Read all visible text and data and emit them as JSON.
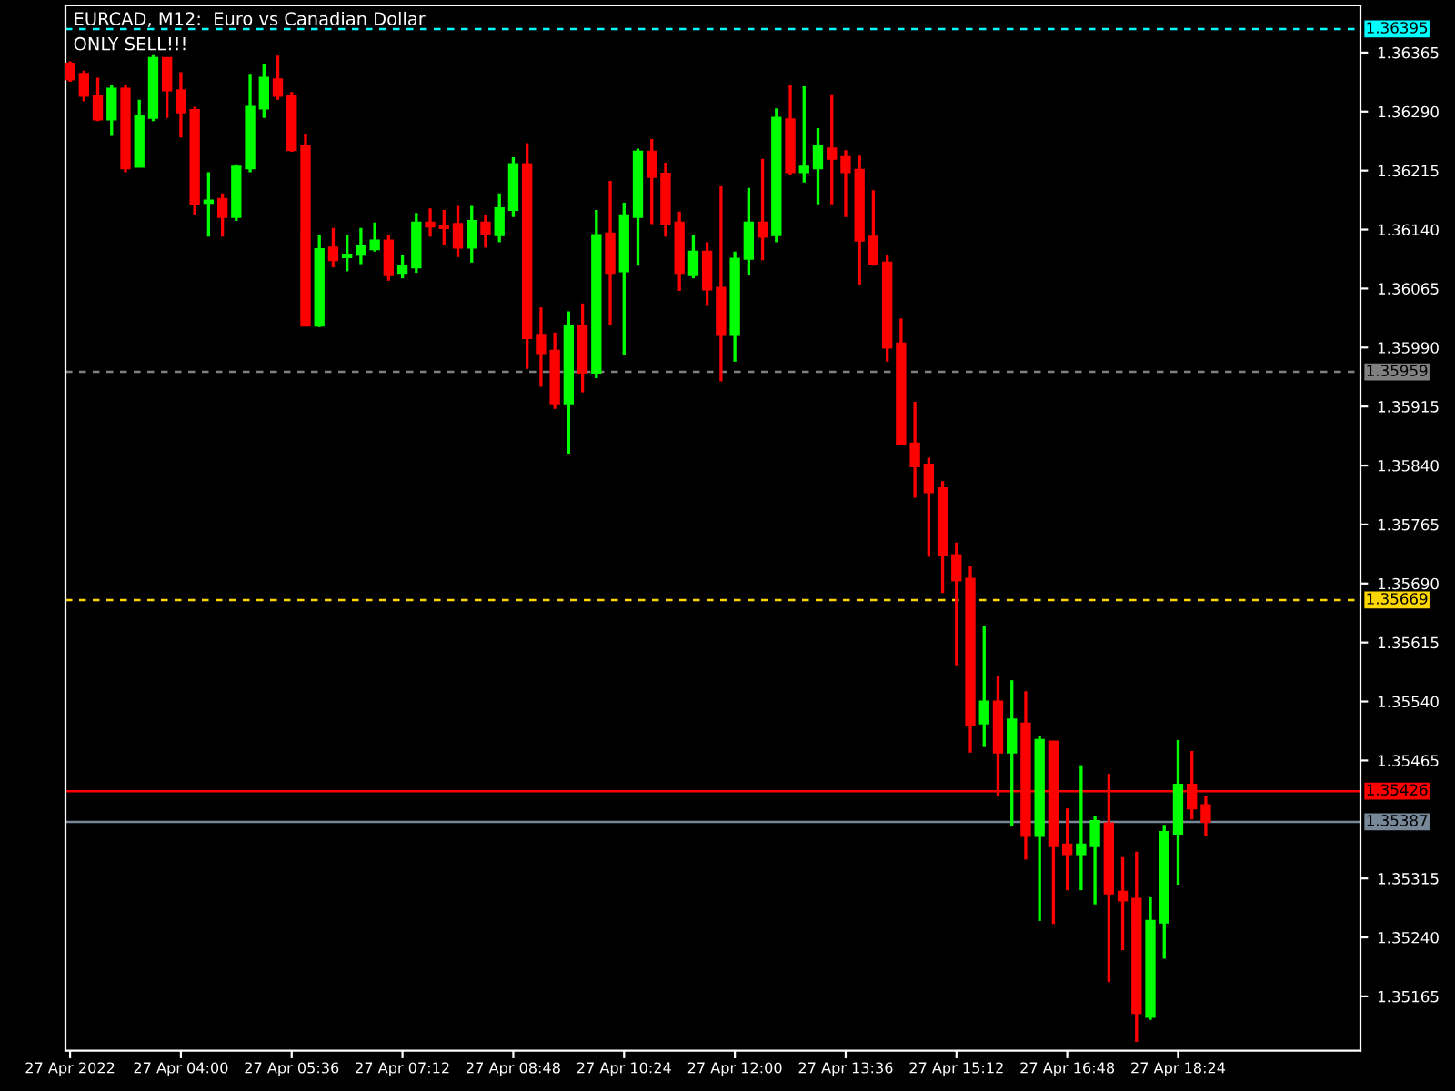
{
  "chart_data": {
    "type": "candlestick",
    "title": "EURCAD, M12:  Euro vs Canadian Dollar",
    "annotations": [
      "ONLY SELL!!!"
    ],
    "x": [
      "2022-04-27T02:24",
      "2022-04-27T02:36",
      "2022-04-27T02:48",
      "2022-04-27T03:00",
      "2022-04-27T03:12",
      "2022-04-27T03:24",
      "2022-04-27T03:36",
      "2022-04-27T03:48",
      "2022-04-27T04:00",
      "2022-04-27T04:12",
      "2022-04-27T04:24",
      "2022-04-27T04:36",
      "2022-04-27T04:48",
      "2022-04-27T05:00",
      "2022-04-27T05:12",
      "2022-04-27T05:24",
      "2022-04-27T05:36",
      "2022-04-27T05:48",
      "2022-04-27T06:00",
      "2022-04-27T06:12",
      "2022-04-27T06:24",
      "2022-04-27T06:36",
      "2022-04-27T06:48",
      "2022-04-27T07:00",
      "2022-04-27T07:12",
      "2022-04-27T07:24",
      "2022-04-27T07:36",
      "2022-04-27T07:48",
      "2022-04-27T08:00",
      "2022-04-27T08:12",
      "2022-04-27T08:24",
      "2022-04-27T08:36",
      "2022-04-27T08:48",
      "2022-04-27T09:00",
      "2022-04-27T09:12",
      "2022-04-27T09:24",
      "2022-04-27T09:36",
      "2022-04-27T09:48",
      "2022-04-27T10:00",
      "2022-04-27T10:12",
      "2022-04-27T10:24",
      "2022-04-27T10:36",
      "2022-04-27T10:48",
      "2022-04-27T11:00",
      "2022-04-27T11:12",
      "2022-04-27T11:24",
      "2022-04-27T11:36",
      "2022-04-27T11:48",
      "2022-04-27T12:00",
      "2022-04-27T12:12",
      "2022-04-27T12:24",
      "2022-04-27T12:36",
      "2022-04-27T12:48",
      "2022-04-27T13:00",
      "2022-04-27T13:12",
      "2022-04-27T13:24",
      "2022-04-27T13:36",
      "2022-04-27T13:48",
      "2022-04-27T14:00",
      "2022-04-27T14:12",
      "2022-04-27T14:24",
      "2022-04-27T14:36",
      "2022-04-27T14:48",
      "2022-04-27T15:00",
      "2022-04-27T15:12",
      "2022-04-27T15:24",
      "2022-04-27T15:36",
      "2022-04-27T15:48",
      "2022-04-27T16:00",
      "2022-04-27T16:12",
      "2022-04-27T16:24",
      "2022-04-27T16:36",
      "2022-04-27T16:48",
      "2022-04-27T17:00",
      "2022-04-27T17:12",
      "2022-04-27T17:24",
      "2022-04-27T17:36",
      "2022-04-27T17:48",
      "2022-04-27T18:00",
      "2022-04-27T18:12",
      "2022-04-27T18:24",
      "2022-04-27T18:36",
      "2022-04-27T18:48"
    ],
    "ohlc": [
      [
        1.36351,
        1.36354,
        1.36328,
        1.36331
      ],
      [
        1.36338,
        1.36342,
        1.36303,
        1.3631
      ],
      [
        1.3631,
        1.36333,
        1.36278,
        1.3628
      ],
      [
        1.3628,
        1.36324,
        1.36259,
        1.36319
      ],
      [
        1.36319,
        1.36324,
        1.36213,
        1.36218
      ],
      [
        1.3622,
        1.36305,
        1.3622,
        1.36285
      ],
      [
        1.36282,
        1.36363,
        1.36278,
        1.36358
      ],
      [
        1.36358,
        1.36358,
        1.36282,
        1.36317
      ],
      [
        1.36317,
        1.3634,
        1.36257,
        1.36289
      ],
      [
        1.36292,
        1.36296,
        1.36158,
        1.36172
      ],
      [
        1.36174,
        1.36213,
        1.36131,
        1.36177
      ],
      [
        1.36179,
        1.36186,
        1.36131,
        1.36156
      ],
      [
        1.36156,
        1.36223,
        1.36151,
        1.3622
      ],
      [
        1.36218,
        1.36338,
        1.36213,
        1.36296
      ],
      [
        1.36294,
        1.36351,
        1.36282,
        1.36333
      ],
      [
        1.36331,
        1.36361,
        1.36305,
        1.3631
      ],
      [
        1.3631,
        1.36315,
        1.36239,
        1.36241
      ],
      [
        1.36246,
        1.36262,
        1.36018,
        1.36018
      ],
      [
        1.36018,
        1.36133,
        1.36016,
        1.36115
      ],
      [
        1.36117,
        1.36142,
        1.36092,
        1.36101
      ],
      [
        1.36105,
        1.36133,
        1.36087,
        1.36108
      ],
      [
        1.36108,
        1.36142,
        1.36096,
        1.36119
      ],
      [
        1.36115,
        1.36149,
        1.36112,
        1.36126
      ],
      [
        1.36126,
        1.36133,
        1.36075,
        1.36082
      ],
      [
        1.36085,
        1.36108,
        1.36078,
        1.36094
      ],
      [
        1.36092,
        1.36161,
        1.36085,
        1.36149
      ],
      [
        1.36149,
        1.36167,
        1.36131,
        1.36144
      ],
      [
        1.36144,
        1.36165,
        1.36121,
        1.36142
      ],
      [
        1.36147,
        1.3617,
        1.36105,
        1.36117
      ],
      [
        1.36117,
        1.3617,
        1.36098,
        1.36151
      ],
      [
        1.36149,
        1.36158,
        1.36117,
        1.36135
      ],
      [
        1.36133,
        1.36186,
        1.36124,
        1.36167
      ],
      [
        1.36165,
        1.36232,
        1.36156,
        1.36223
      ],
      [
        1.36223,
        1.3625,
        1.35963,
        1.36002
      ],
      [
        1.36006,
        1.36041,
        1.3594,
        1.35983
      ],
      [
        1.35986,
        1.36009,
        1.35912,
        1.35919
      ],
      [
        1.35919,
        1.36036,
        1.35855,
        1.36018
      ],
      [
        1.36018,
        1.36046,
        1.35933,
        1.35958
      ],
      [
        1.35958,
        1.36165,
        1.35951,
        1.36133
      ],
      [
        1.36135,
        1.36202,
        1.36018,
        1.36085
      ],
      [
        1.36087,
        1.36174,
        1.35981,
        1.36158
      ],
      [
        1.36156,
        1.36243,
        1.36094,
        1.36239
      ],
      [
        1.36239,
        1.36255,
        1.36147,
        1.36207
      ],
      [
        1.36211,
        1.36225,
        1.36131,
        1.36147
      ],
      [
        1.36149,
        1.36163,
        1.36062,
        1.36085
      ],
      [
        1.36082,
        1.36133,
        1.36078,
        1.36112
      ],
      [
        1.36112,
        1.36124,
        1.36043,
        1.36064
      ],
      [
        1.36066,
        1.36195,
        1.35947,
        1.36006
      ],
      [
        1.36006,
        1.36112,
        1.35972,
        1.36103
      ],
      [
        1.36103,
        1.36193,
        1.36082,
        1.36149
      ],
      [
        1.36149,
        1.3623,
        1.36101,
        1.36131
      ],
      [
        1.36133,
        1.36294,
        1.36124,
        1.36282
      ],
      [
        1.3628,
        1.36324,
        1.36209,
        1.36213
      ],
      [
        1.36213,
        1.36322,
        1.362,
        1.3622
      ],
      [
        1.36218,
        1.36269,
        1.36172,
        1.36246
      ],
      [
        1.36243,
        1.36312,
        1.36172,
        1.3623
      ],
      [
        1.36232,
        1.36241,
        1.36156,
        1.36213
      ],
      [
        1.36216,
        1.36234,
        1.36069,
        1.36126
      ],
      [
        1.36131,
        1.3619,
        1.36094,
        1.36096
      ],
      [
        1.36098,
        1.36108,
        1.35972,
        1.3599
      ],
      [
        1.35995,
        1.36027,
        1.35866,
        1.35868
      ],
      [
        1.35868,
        1.35921,
        1.35799,
        1.35839
      ],
      [
        1.35841,
        1.3585,
        1.35724,
        1.35806
      ],
      [
        1.35811,
        1.3582,
        1.35678,
        1.35726
      ],
      [
        1.35726,
        1.35742,
        1.35586,
        1.35694
      ],
      [
        1.35696,
        1.35712,
        1.35475,
        1.3551
      ],
      [
        1.35512,
        1.35636,
        1.35482,
        1.3554
      ],
      [
        1.3554,
        1.35572,
        1.3542,
        1.35475
      ],
      [
        1.35475,
        1.35567,
        1.35381,
        1.35517
      ],
      [
        1.35512,
        1.35553,
        1.35339,
        1.35369
      ],
      [
        1.35369,
        1.35496,
        1.35261,
        1.35491
      ],
      [
        1.35489,
        1.35489,
        1.35257,
        1.35356
      ],
      [
        1.35358,
        1.35404,
        1.353,
        1.35346
      ],
      [
        1.35346,
        1.35459,
        1.353,
        1.35358
      ],
      [
        1.35356,
        1.35395,
        1.35282,
        1.35388
      ],
      [
        1.35385,
        1.35448,
        1.35183,
        1.35296
      ],
      [
        1.35298,
        1.35342,
        1.35224,
        1.35287
      ],
      [
        1.35289,
        1.35349,
        1.35107,
        1.35144
      ],
      [
        1.35139,
        1.35291,
        1.35135,
        1.35261
      ],
      [
        1.35259,
        1.35383,
        1.35213,
        1.35374
      ],
      [
        1.35372,
        1.35491,
        1.35307,
        1.35434
      ],
      [
        1.35434,
        1.35477,
        1.3539,
        1.35404
      ],
      [
        1.35408,
        1.3542,
        1.35369,
        1.35387
      ]
    ],
    "colors": [
      "#ff0000",
      "#ff0000",
      "#ff0000",
      "#00ff00",
      "#ff0000",
      "#00ff00",
      "#00ff00",
      "#ff0000",
      "#ff0000",
      "#ff0000",
      "#00ff00",
      "#ff0000",
      "#00ff00",
      "#00ff00",
      "#00ff00",
      "#ff0000",
      "#ff0000",
      "#ff0000",
      "#00ff00",
      "#ff0000",
      "#00ff00",
      "#00ff00",
      "#00ff00",
      "#ff0000",
      "#00ff00",
      "#00ff00",
      "#ff0000",
      "#ff0000",
      "#ff0000",
      "#00ff00",
      "#ff0000",
      "#00ff00",
      "#00ff00",
      "#ff0000",
      "#ff0000",
      "#ff0000",
      "#00ff00",
      "#ff0000",
      "#00ff00",
      "#ff0000",
      "#00ff00",
      "#00ff00",
      "#ff0000",
      "#ff0000",
      "#ff0000",
      "#00ff00",
      "#ff0000",
      "#ff0000",
      "#00ff00",
      "#00ff00",
      "#ff0000",
      "#00ff00",
      "#ff0000",
      "#00ff00",
      "#00ff00",
      "#ff0000",
      "#ff0000",
      "#ff0000",
      "#ff0000",
      "#ff0000",
      "#ff0000",
      "#ff0000",
      "#ff0000",
      "#ff0000",
      "#ff0000",
      "#ff0000",
      "#00ff00",
      "#ff0000",
      "#00ff00",
      "#ff0000",
      "#00ff00",
      "#ff0000",
      "#ff0000",
      "#00ff00",
      "#00ff00",
      "#ff0000",
      "#ff0000",
      "#ff0000",
      "#00ff00",
      "#00ff00",
      "#00ff00",
      "#ff0000",
      "#ff0000"
    ],
    "xlim": [
      "2022-04-27T02:20",
      "2022-04-27T21:02"
    ],
    "xticks": [
      {
        "value": "2022-04-27T02:24",
        "label": "27 Apr 2022"
      },
      {
        "value": "2022-04-27T04:00",
        "label": "27 Apr 04:00"
      },
      {
        "value": "2022-04-27T05:36",
        "label": "27 Apr 05:36"
      },
      {
        "value": "2022-04-27T07:12",
        "label": "27 Apr 07:12"
      },
      {
        "value": "2022-04-27T08:48",
        "label": "27 Apr 08:48"
      },
      {
        "value": "2022-04-27T10:24",
        "label": "27 Apr 10:24"
      },
      {
        "value": "2022-04-27T12:00",
        "label": "27 Apr 12:00"
      },
      {
        "value": "2022-04-27T13:36",
        "label": "27 Apr 13:36"
      },
      {
        "value": "2022-04-27T15:12",
        "label": "27 Apr 15:12"
      },
      {
        "value": "2022-04-27T16:48",
        "label": "27 Apr 16:48"
      },
      {
        "value": "2022-04-27T18:24",
        "label": "27 Apr 18:24"
      }
    ],
    "ylim": [
      1.35096,
      1.36425
    ],
    "yticks": [
      {
        "value": 1.36365,
        "label": "1.36365"
      },
      {
        "value": 1.3629,
        "label": "1.36290"
      },
      {
        "value": 1.36215,
        "label": "1.36215"
      },
      {
        "value": 1.3614,
        "label": "1.36140"
      },
      {
        "value": 1.36065,
        "label": "1.36065"
      },
      {
        "value": 1.3599,
        "label": "1.35990"
      },
      {
        "value": 1.35915,
        "label": "1.35915"
      },
      {
        "value": 1.3584,
        "label": "1.35840"
      },
      {
        "value": 1.35765,
        "label": "1.35765"
      },
      {
        "value": 1.3569,
        "label": "1.35690"
      },
      {
        "value": 1.35615,
        "label": "1.35615"
      },
      {
        "value": 1.3554,
        "label": "1.35540"
      },
      {
        "value": 1.35465,
        "label": "1.35465"
      },
      {
        "value": 1.35315,
        "label": "1.35315"
      },
      {
        "value": 1.3524,
        "label": "1.35240"
      },
      {
        "value": 1.35165,
        "label": "1.35165"
      }
    ],
    "ref_lines": [
      {
        "axis": "y",
        "value": 1.36395,
        "label": "1.36395",
        "color": "#00ffff",
        "line_style": "dashed"
      },
      {
        "axis": "y",
        "value": 1.35959,
        "label": "1.35959",
        "color": "#808080",
        "line_style": "dashed"
      },
      {
        "axis": "y",
        "value": 1.35669,
        "label": "1.35669",
        "color": "#ffd700",
        "line_style": "dashed"
      },
      {
        "axis": "y",
        "value": 1.35426,
        "label": "1.35426",
        "color": "#ff0000",
        "line_style": "solid"
      },
      {
        "axis": "y",
        "value": 1.35387,
        "label": "1.35387",
        "color": "#778899",
        "line_style": "solid"
      }
    ]
  }
}
